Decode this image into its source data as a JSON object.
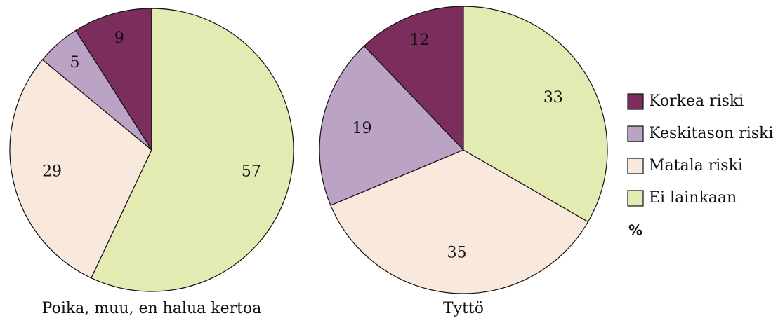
{
  "chart_data": [
    {
      "type": "pie",
      "title": "Poika, muu, en halua kertoa",
      "categories": [
        "Korkea riski",
        "Keskitason riski",
        "Matala riski",
        "Ei lainkaan"
      ],
      "values": [
        9,
        5,
        29,
        57
      ],
      "colors": [
        "#7b2d5b",
        "#bba3c6",
        "#f9e9dc",
        "#e4ebb2"
      ]
    },
    {
      "type": "pie",
      "title": "Tyttö",
      "categories": [
        "Korkea riski",
        "Keskitason riski",
        "Matala riski",
        "Ei lainkaan"
      ],
      "values": [
        12,
        19,
        35,
        33
      ],
      "colors": [
        "#7b2d5b",
        "#bba3c6",
        "#f9e9dc",
        "#e4ebb2"
      ]
    }
  ],
  "legend": {
    "unit": "%"
  }
}
